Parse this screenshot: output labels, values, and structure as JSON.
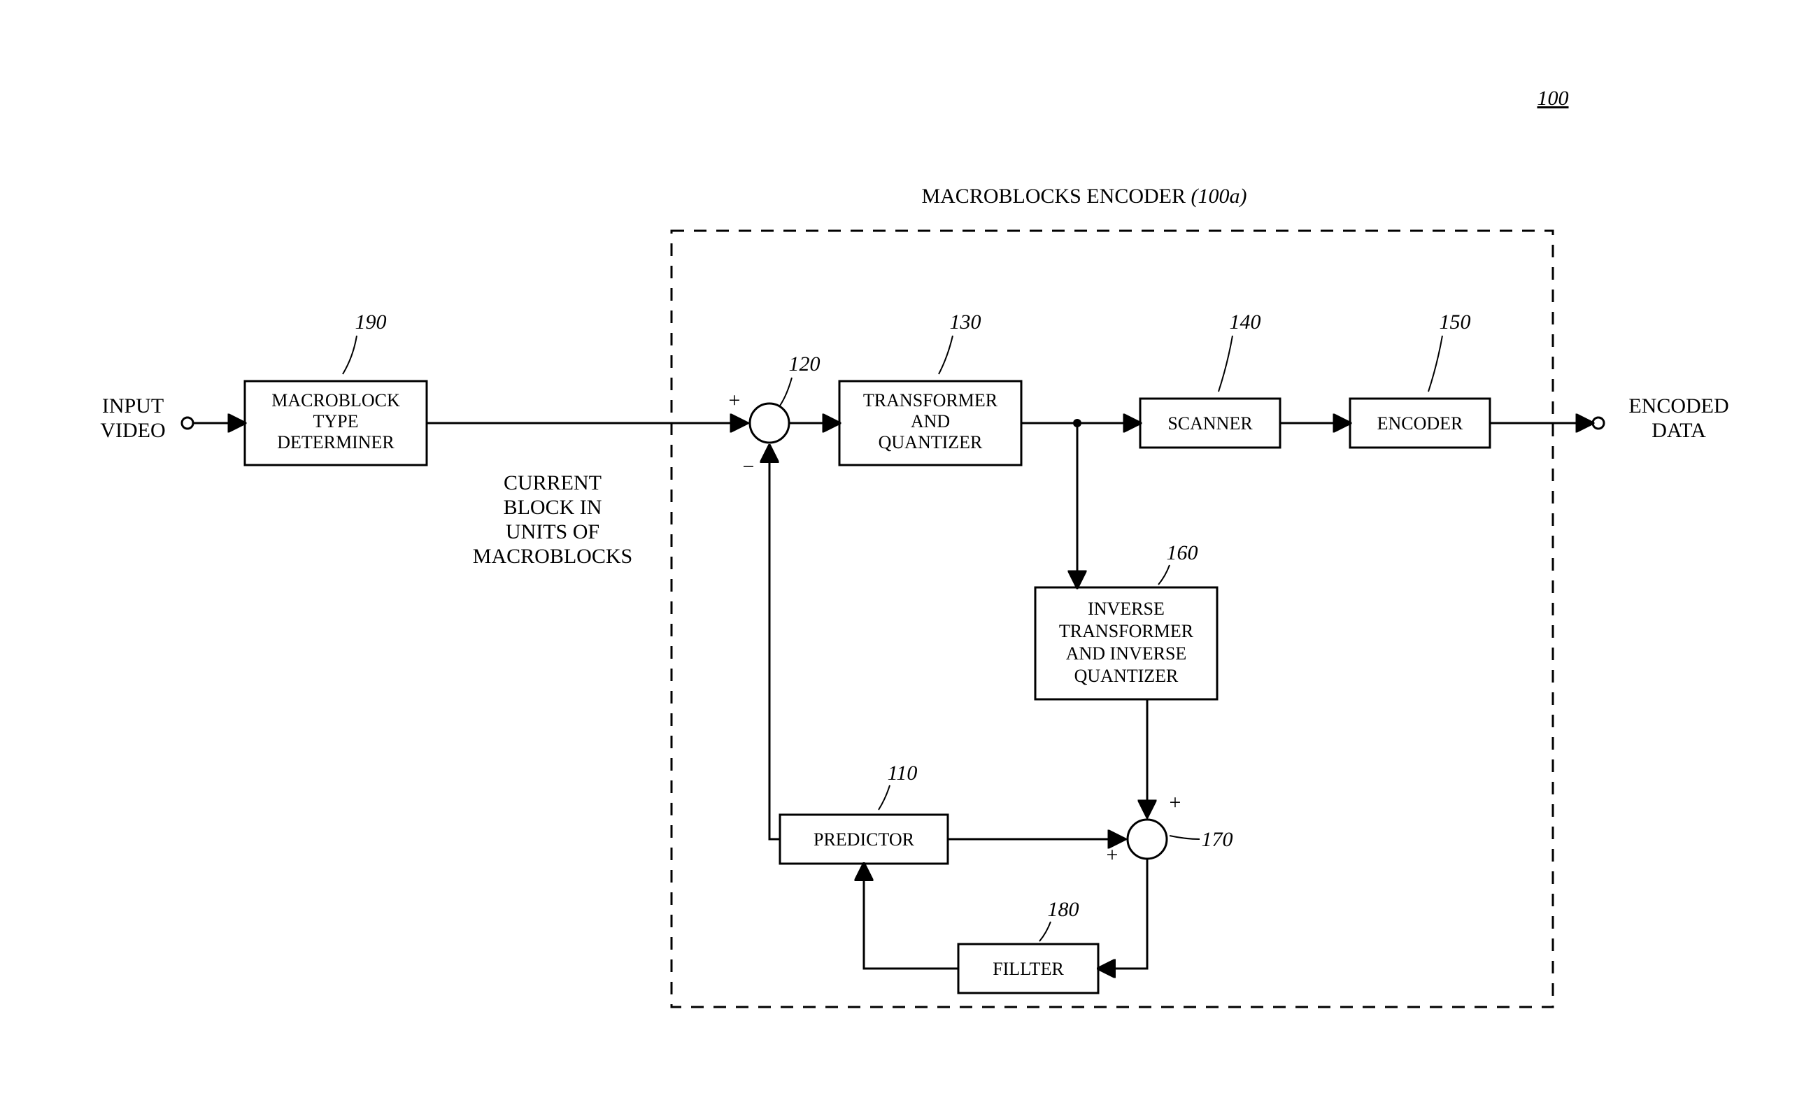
{
  "diagram": {
    "figure_ref": "100",
    "container_label": "MACROBLOCKS ENCODER",
    "container_ref": "(100a)",
    "io": {
      "input_l1": "INPUT",
      "input_l2": "VIDEO",
      "output_l1": "ENCODED",
      "output_l2": "DATA",
      "midlabel_l1": "CURRENT",
      "midlabel_l2": "BLOCK IN",
      "midlabel_l3": "UNITS OF",
      "midlabel_l4": "MACROBLOCKS"
    },
    "refs": {
      "r190": "190",
      "r120": "120",
      "r130": "130",
      "r140": "140",
      "r150": "150",
      "r160": "160",
      "r110": "110",
      "r170": "170",
      "r180": "180"
    },
    "nodes": {
      "n190_l1": "MACROBLOCK",
      "n190_l2": "TYPE",
      "n190_l3": "DETERMINER",
      "n130_l1": "TRANSFORMER",
      "n130_l2": "AND",
      "n130_l3": "QUANTIZER",
      "n140": "SCANNER",
      "n150": "ENCODER",
      "n160_l1": "INVERSE",
      "n160_l2": "TRANSFORMER",
      "n160_l3": "AND INVERSE",
      "n160_l4": "QUANTIZER",
      "n110": "PREDICTOR",
      "n180": "FILLTER"
    },
    "signs": {
      "plus": "+",
      "minus": "−"
    },
    "style": {
      "viewbox_w": 2569,
      "viewbox_h": 1583,
      "stroke": "#000000",
      "stroke_w": 3,
      "dash": "18 14",
      "circle_r": 28,
      "small_circle_r": 8,
      "arrowhead_size": 14
    }
  }
}
